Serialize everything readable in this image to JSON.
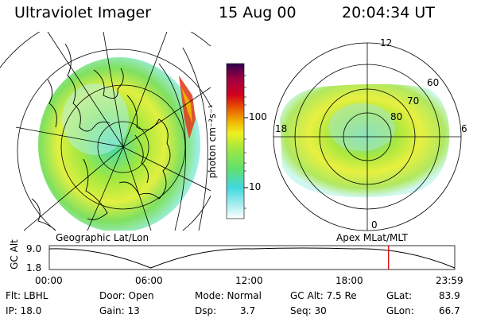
{
  "header": {
    "instrument": "Ultraviolet Imager",
    "date": "15 Aug 00",
    "time": "20:04:34 UT"
  },
  "colorbar": {
    "unit_label": "photon cm⁻²s⁻¹",
    "ticks": [
      "100",
      "10"
    ],
    "scale": "log",
    "colors": [
      "#ffffff",
      "#b0f0f0",
      "#40d8e0",
      "#60e070",
      "#a0e840",
      "#f0f020",
      "#f0b000",
      "#e85000",
      "#d00020",
      "#a00040",
      "#300050"
    ]
  },
  "left_map": {
    "projection_label": "Geographic Lat/Lon",
    "grid": true,
    "coastlines": true
  },
  "right_map": {
    "projection_label": "Apex MLat/MLT",
    "mlt_labels": {
      "top": "12",
      "bottom": "0",
      "left": "18",
      "right": "6"
    },
    "mlat_labels": [
      "60",
      "70",
      "80"
    ]
  },
  "altitude_plot": {
    "ylabel": "GC Alt",
    "y_ticks": [
      "9.0",
      "1.8"
    ],
    "x_ticks": [
      "00:00",
      "06:00",
      "12:00",
      "18:00",
      "23:59"
    ],
    "marker_time": "20:04",
    "marker_color": "#e00000"
  },
  "status": {
    "row1": {
      "flt": "Flt: LBHL",
      "door": "Door: Open",
      "mode": "Mode: Normal",
      "gcalt": "GC Alt: 7.5 Re",
      "glat_label": "GLat:",
      "glat_value": "83.9"
    },
    "row2": {
      "ip": "IP: 18.0",
      "gain": "Gain: 13",
      "dsp_label": "Dsp:",
      "dsp_value": "3.7",
      "seq": "Seq: 30",
      "glon_label": "GLon:",
      "glon_value": "66.7"
    }
  },
  "chart_data": {
    "type": "line",
    "title": "",
    "xlabel": "",
    "ylabel": "GC Alt",
    "x": [
      "00:00",
      "06:00",
      "12:00",
      "18:00",
      "23:59"
    ],
    "series": [
      {
        "values": [
          9.0,
          1.8,
          9.0,
          9.0,
          1.8
        ]
      }
    ],
    "ylim": [
      1.8,
      9.0
    ]
  }
}
